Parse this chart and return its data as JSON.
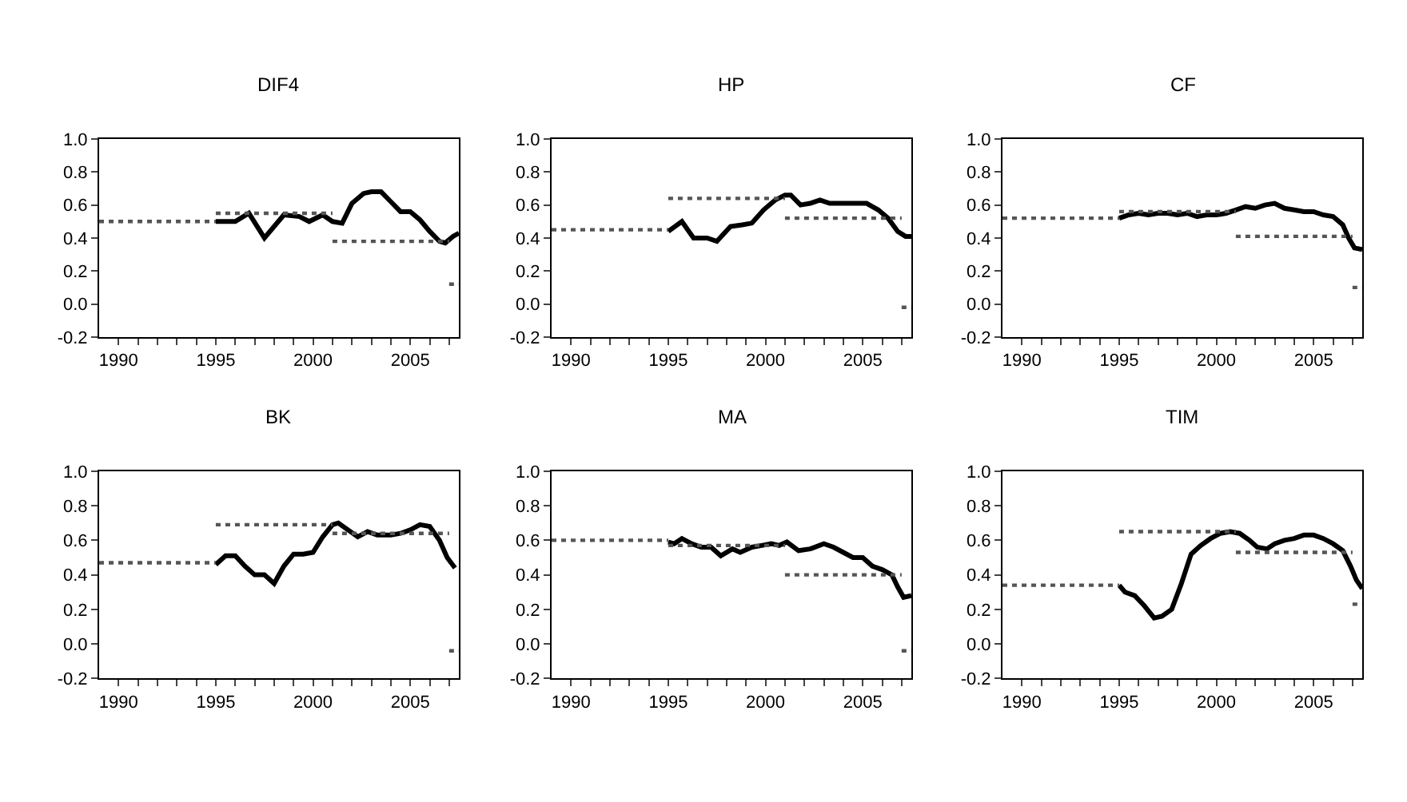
{
  "chart_data": [
    {
      "type": "line",
      "title": "DIF4",
      "xlim": [
        1989,
        2007.5
      ],
      "ylim": [
        -0.2,
        1.0
      ],
      "yticks": [
        {
          "value": -0.2,
          "label": "-0.2"
        },
        {
          "value": 0,
          "label": "0.0"
        },
        {
          "value": 0.2,
          "label": "0.2"
        },
        {
          "value": 0.4,
          "label": "0.4"
        },
        {
          "value": 0.6,
          "label": "0.6"
        },
        {
          "value": 0.8,
          "label": "0.8"
        },
        {
          "value": 1.0,
          "label": "1.0"
        }
      ],
      "xticks": [
        1990,
        {
          "value": 1991,
          "label": null
        },
        {
          "value": 1992,
          "label": null
        },
        {
          "value": 1993,
          "label": null
        },
        {
          "value": 1994,
          "label": null
        },
        1995,
        {
          "value": 1996,
          "label": null
        },
        {
          "value": 1997,
          "label": null
        },
        {
          "value": 1998,
          "label": null
        },
        {
          "value": 1999,
          "label": null
        },
        2000,
        {
          "value": 2001,
          "label": null
        },
        {
          "value": 2002,
          "label": null
        },
        {
          "value": 2003,
          "label": null
        },
        {
          "value": 2004,
          "label": null
        },
        2005,
        {
          "value": 2006,
          "label": null
        },
        {
          "value": 2007,
          "label": null
        }
      ],
      "series": [
        {
          "color": "#000000",
          "line_style": "solid",
          "x": [
            1995,
            1996,
            1996.7,
            1997.5,
            1998.5,
            1999.3,
            1999.8,
            2000.5,
            2001,
            2001.5,
            2002,
            2002.6,
            2003,
            2003.5,
            2004,
            2004.5,
            2005,
            2005.5,
            2006,
            2006.5,
            2006.8,
            2007.2,
            2007.5
          ],
          "values": [
            0.5,
            0.5,
            0.55,
            0.4,
            0.54,
            0.53,
            0.5,
            0.54,
            0.5,
            0.49,
            0.61,
            0.67,
            0.68,
            0.68,
            0.62,
            0.56,
            0.56,
            0.51,
            0.44,
            0.38,
            0.37,
            0.41,
            0.43
          ]
        },
        {
          "color": "#555555",
          "line_style": "dotted",
          "x": [
            1989,
            1995,
            null,
            1995,
            2001,
            null,
            2001,
            2007,
            null,
            2007,
            2007.5
          ],
          "values": [
            0.5,
            0.5,
            null,
            0.55,
            0.55,
            null,
            0.38,
            0.38,
            null,
            0.12,
            0.12
          ]
        }
      ]
    },
    {
      "type": "line",
      "title": "HP",
      "xlim": [
        1989,
        2007.5
      ],
      "ylim": [
        -0.2,
        1.0
      ],
      "yticks": [
        {
          "value": -0.2,
          "label": "-0.2"
        },
        {
          "value": 0,
          "label": "0.0"
        },
        {
          "value": 0.2,
          "label": "0.2"
        },
        {
          "value": 0.4,
          "label": "0.4"
        },
        {
          "value": 0.6,
          "label": "0.6"
        },
        {
          "value": 0.8,
          "label": "0.8"
        },
        {
          "value": 1.0,
          "label": "1.0"
        }
      ],
      "xticks": [
        1990,
        {
          "value": 1991,
          "label": null
        },
        {
          "value": 1992,
          "label": null
        },
        {
          "value": 1993,
          "label": null
        },
        {
          "value": 1994,
          "label": null
        },
        1995,
        {
          "value": 1996,
          "label": null
        },
        {
          "value": 1997,
          "label": null
        },
        {
          "value": 1998,
          "label": null
        },
        {
          "value": 1999,
          "label": null
        },
        2000,
        {
          "value": 2001,
          "label": null
        },
        {
          "value": 2002,
          "label": null
        },
        {
          "value": 2003,
          "label": null
        },
        {
          "value": 2004,
          "label": null
        },
        2005,
        {
          "value": 2006,
          "label": null
        },
        {
          "value": 2007,
          "label": null
        }
      ],
      "series": [
        {
          "color": "#000000",
          "line_style": "solid",
          "x": [
            1995,
            1995.7,
            1996.3,
            1997,
            1997.5,
            1998.2,
            1998.8,
            1999.3,
            1999.9,
            2000.5,
            2001,
            2001.3,
            2001.8,
            2002.3,
            2002.8,
            2003.3,
            2004,
            2004.7,
            2005.2,
            2005.8,
            2006.3,
            2006.8,
            2007.2,
            2007.5
          ],
          "values": [
            0.44,
            0.5,
            0.4,
            0.4,
            0.38,
            0.47,
            0.48,
            0.49,
            0.57,
            0.63,
            0.66,
            0.66,
            0.6,
            0.61,
            0.63,
            0.61,
            0.61,
            0.61,
            0.61,
            0.57,
            0.52,
            0.44,
            0.41,
            0.41
          ]
        },
        {
          "color": "#555555",
          "line_style": "dotted",
          "x": [
            1989,
            1995,
            null,
            1995,
            2001,
            null,
            2001,
            2007,
            null,
            2007,
            2007.5
          ],
          "values": [
            0.45,
            0.45,
            null,
            0.64,
            0.64,
            null,
            0.52,
            0.52,
            null,
            -0.02,
            -0.02
          ]
        }
      ]
    },
    {
      "type": "line",
      "title": "CF",
      "xlim": [
        1989,
        2007.5
      ],
      "ylim": [
        -0.2,
        1.0
      ],
      "yticks": [
        {
          "value": -0.2,
          "label": "-0.2"
        },
        {
          "value": 0,
          "label": "0.0"
        },
        {
          "value": 0.2,
          "label": "0.2"
        },
        {
          "value": 0.4,
          "label": "0.4"
        },
        {
          "value": 0.6,
          "label": "0.6"
        },
        {
          "value": 0.8,
          "label": "0.8"
        },
        {
          "value": 1.0,
          "label": "1.0"
        }
      ],
      "xticks": [
        1990,
        {
          "value": 1991,
          "label": null
        },
        {
          "value": 1992,
          "label": null
        },
        {
          "value": 1993,
          "label": null
        },
        {
          "value": 1994,
          "label": null
        },
        1995,
        {
          "value": 1996,
          "label": null
        },
        {
          "value": 1997,
          "label": null
        },
        {
          "value": 1998,
          "label": null
        },
        {
          "value": 1999,
          "label": null
        },
        2000,
        {
          "value": 2001,
          "label": null
        },
        {
          "value": 2002,
          "label": null
        },
        {
          "value": 2003,
          "label": null
        },
        {
          "value": 2004,
          "label": null
        },
        2005,
        {
          "value": 2006,
          "label": null
        },
        {
          "value": 2007,
          "label": null
        }
      ],
      "series": [
        {
          "color": "#000000",
          "line_style": "solid",
          "x": [
            1995,
            1995.5,
            1996,
            1996.5,
            1997,
            1997.5,
            1998,
            1998.5,
            1999,
            1999.5,
            2000,
            2000.5,
            2001,
            2001.5,
            2002,
            2002.5,
            2003,
            2003.5,
            2004,
            2004.5,
            2005,
            2005.5,
            2006,
            2006.5,
            2006.8,
            2007.1,
            2007.5
          ],
          "values": [
            0.52,
            0.54,
            0.55,
            0.54,
            0.55,
            0.55,
            0.54,
            0.55,
            0.53,
            0.54,
            0.54,
            0.55,
            0.57,
            0.59,
            0.58,
            0.6,
            0.61,
            0.58,
            0.57,
            0.56,
            0.56,
            0.54,
            0.53,
            0.48,
            0.4,
            0.34,
            0.33
          ]
        },
        {
          "color": "#555555",
          "line_style": "dotted",
          "x": [
            1989,
            1995,
            null,
            1995,
            2001,
            null,
            2001,
            2007,
            null,
            2007,
            2007.5
          ],
          "values": [
            0.52,
            0.52,
            null,
            0.56,
            0.56,
            null,
            0.41,
            0.41,
            null,
            0.1,
            0.1
          ]
        }
      ]
    },
    {
      "type": "line",
      "title": "BK",
      "xlim": [
        1989,
        2007.5
      ],
      "ylim": [
        -0.2,
        1.0
      ],
      "yticks": [
        {
          "value": -0.2,
          "label": "-0.2"
        },
        {
          "value": 0,
          "label": "0.0"
        },
        {
          "value": 0.2,
          "label": "0.2"
        },
        {
          "value": 0.4,
          "label": "0.4"
        },
        {
          "value": 0.6,
          "label": "0.6"
        },
        {
          "value": 0.8,
          "label": "0.8"
        },
        {
          "value": 1.0,
          "label": "1.0"
        }
      ],
      "xticks": [
        1990,
        {
          "value": 1991,
          "label": null
        },
        {
          "value": 1992,
          "label": null
        },
        {
          "value": 1993,
          "label": null
        },
        {
          "value": 1994,
          "label": null
        },
        1995,
        {
          "value": 1996,
          "label": null
        },
        {
          "value": 1997,
          "label": null
        },
        {
          "value": 1998,
          "label": null
        },
        {
          "value": 1999,
          "label": null
        },
        2000,
        {
          "value": 2001,
          "label": null
        },
        {
          "value": 2002,
          "label": null
        },
        {
          "value": 2003,
          "label": null
        },
        {
          "value": 2004,
          "label": null
        },
        2005,
        {
          "value": 2006,
          "label": null
        },
        {
          "value": 2007,
          "label": null
        }
      ],
      "series": [
        {
          "color": "#000000",
          "line_style": "solid",
          "x": [
            1995,
            1995.5,
            1996,
            1996.5,
            1997,
            1997.5,
            1998,
            1998.5,
            1999,
            1999.5,
            2000,
            2000.5,
            2001,
            2001.3,
            2001.8,
            2002.3,
            2002.8,
            2003.3,
            2004,
            2004.5,
            2005,
            2005.5,
            2006,
            2006.5,
            2006.9,
            2007.3
          ],
          "values": [
            0.46,
            0.51,
            0.51,
            0.45,
            0.4,
            0.4,
            0.35,
            0.45,
            0.52,
            0.52,
            0.53,
            0.62,
            0.69,
            0.7,
            0.66,
            0.62,
            0.65,
            0.63,
            0.63,
            0.64,
            0.66,
            0.69,
            0.68,
            0.6,
            0.5,
            0.44
          ]
        },
        {
          "color": "#555555",
          "line_style": "dotted",
          "x": [
            1989,
            1995,
            null,
            1995,
            2001,
            null,
            2001,
            2007,
            null,
            2007,
            2007.5
          ],
          "values": [
            0.47,
            0.47,
            null,
            0.69,
            0.69,
            null,
            0.64,
            0.64,
            null,
            -0.04,
            -0.04
          ]
        }
      ]
    },
    {
      "type": "line",
      "title": "MA",
      "xlim": [
        1989,
        2007.5
      ],
      "ylim": [
        -0.2,
        1.0
      ],
      "yticks": [
        {
          "value": -0.2,
          "label": "-0.2"
        },
        {
          "value": 0,
          "label": "0.0"
        },
        {
          "value": 0.2,
          "label": "0.2"
        },
        {
          "value": 0.4,
          "label": "0.4"
        },
        {
          "value": 0.6,
          "label": "0.6"
        },
        {
          "value": 0.8,
          "label": "0.8"
        },
        {
          "value": 1.0,
          "label": "1.0"
        }
      ],
      "xticks": [
        1990,
        {
          "value": 1991,
          "label": null
        },
        {
          "value": 1992,
          "label": null
        },
        {
          "value": 1993,
          "label": null
        },
        {
          "value": 1994,
          "label": null
        },
        1995,
        {
          "value": 1996,
          "label": null
        },
        {
          "value": 1997,
          "label": null
        },
        {
          "value": 1998,
          "label": null
        },
        {
          "value": 1999,
          "label": null
        },
        2000,
        {
          "value": 2001,
          "label": null
        },
        {
          "value": 2002,
          "label": null
        },
        {
          "value": 2003,
          "label": null
        },
        {
          "value": 2004,
          "label": null
        },
        2005,
        {
          "value": 2006,
          "label": null
        },
        {
          "value": 2007,
          "label": null
        }
      ],
      "series": [
        {
          "color": "#000000",
          "line_style": "solid",
          "x": [
            1995,
            1995.3,
            1995.7,
            1996.2,
            1996.7,
            1997.2,
            1997.7,
            1998.3,
            1998.7,
            1999.3,
            1999.8,
            2000.3,
            2000.7,
            2001.1,
            2001.7,
            2002.3,
            2003,
            2003.5,
            2004,
            2004.5,
            2005,
            2005.5,
            2006,
            2006.5,
            2006.8,
            2007.1,
            2007.5
          ],
          "values": [
            0.59,
            0.58,
            0.61,
            0.58,
            0.56,
            0.56,
            0.51,
            0.55,
            0.53,
            0.56,
            0.57,
            0.58,
            0.57,
            0.59,
            0.54,
            0.55,
            0.58,
            0.56,
            0.53,
            0.5,
            0.5,
            0.45,
            0.43,
            0.4,
            0.33,
            0.27,
            0.28
          ]
        },
        {
          "color": "#555555",
          "line_style": "dotted",
          "x": [
            1989,
            1995,
            null,
            1995,
            2001,
            null,
            2001,
            2007,
            null,
            2007,
            2007.5
          ],
          "values": [
            0.6,
            0.6,
            null,
            0.57,
            0.57,
            null,
            0.4,
            0.4,
            null,
            -0.04,
            -0.04
          ]
        }
      ]
    },
    {
      "type": "line",
      "title": "TIM",
      "xlim": [
        1989,
        2007.5
      ],
      "ylim": [
        -0.2,
        1.0
      ],
      "yticks": [
        {
          "value": -0.2,
          "label": "-0.2"
        },
        {
          "value": 0,
          "label": "0.0"
        },
        {
          "value": 0.2,
          "label": "0.2"
        },
        {
          "value": 0.4,
          "label": "0.4"
        },
        {
          "value": 0.6,
          "label": "0.6"
        },
        {
          "value": 0.8,
          "label": "0.8"
        },
        {
          "value": 1.0,
          "label": "1.0"
        }
      ],
      "xticks": [
        1990,
        {
          "value": 1991,
          "label": null
        },
        {
          "value": 1992,
          "label": null
        },
        {
          "value": 1993,
          "label": null
        },
        {
          "value": 1994,
          "label": null
        },
        1995,
        {
          "value": 1996,
          "label": null
        },
        {
          "value": 1997,
          "label": null
        },
        {
          "value": 1998,
          "label": null
        },
        {
          "value": 1999,
          "label": null
        },
        2000,
        {
          "value": 2001,
          "label": null
        },
        {
          "value": 2002,
          "label": null
        },
        {
          "value": 2003,
          "label": null
        },
        {
          "value": 2004,
          "label": null
        },
        2005,
        {
          "value": 2006,
          "label": null
        },
        {
          "value": 2007,
          "label": null
        }
      ],
      "series": [
        {
          "color": "#000000",
          "line_style": "solid",
          "x": [
            1995,
            1995.3,
            1995.8,
            1996.3,
            1996.8,
            1997.2,
            1997.7,
            1998.2,
            1998.7,
            1999.2,
            1999.7,
            2000.2,
            2000.7,
            2001.2,
            2001.7,
            2002.1,
            2002.6,
            2003,
            2003.5,
            2004,
            2004.5,
            2005,
            2005.5,
            2006,
            2006.5,
            2006.9,
            2007.2,
            2007.5
          ],
          "values": [
            0.34,
            0.3,
            0.28,
            0.22,
            0.15,
            0.16,
            0.2,
            0.35,
            0.52,
            0.57,
            0.61,
            0.64,
            0.65,
            0.64,
            0.6,
            0.56,
            0.55,
            0.58,
            0.6,
            0.61,
            0.63,
            0.63,
            0.61,
            0.58,
            0.54,
            0.45,
            0.37,
            0.32
          ]
        },
        {
          "color": "#555555",
          "line_style": "dotted",
          "x": [
            1989,
            1995,
            null,
            1995,
            2001,
            null,
            2001,
            2007,
            null,
            2007,
            2007.5
          ],
          "values": [
            0.34,
            0.34,
            null,
            0.65,
            0.65,
            null,
            0.53,
            0.53,
            null,
            0.23,
            0.23
          ]
        }
      ]
    }
  ]
}
